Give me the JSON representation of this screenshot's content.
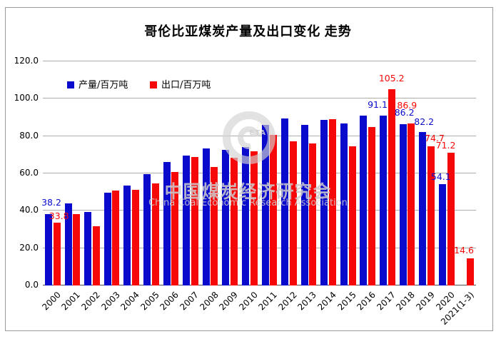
{
  "title": "哥伦比亚煤炭产量及出口变化 走势",
  "watermark": {
    "cn": "中国煤炭经济研究会",
    "en": "China Coal Economic Research Association",
    "logo_text": "ETA"
  },
  "chart_data": {
    "type": "bar",
    "title": "哥伦比亚煤炭产量及出口变化 走势",
    "categories": [
      "2000",
      "2001",
      "2002",
      "2003",
      "2004",
      "2005",
      "2006",
      "2007",
      "2008",
      "2009",
      "2010",
      "2011",
      "2012",
      "2013",
      "2014",
      "2015",
      "2016",
      "2017",
      "2018",
      "2019",
      "2020",
      "2021(1-3)"
    ],
    "series": [
      {
        "name": "产量/百万吨",
        "color": "#0a0acd",
        "values": [
          38.2,
          43.8,
          39.4,
          49.6,
          53.6,
          59.5,
          66.1,
          69.5,
          73.4,
          72.5,
          74.0,
          86.0,
          89.4,
          85.9,
          88.8,
          86.6,
          90.9,
          91.1,
          86.2,
          82.2,
          54.1,
          null
        ]
      },
      {
        "name": "出口/百万吨",
        "color": "#f70808",
        "values": [
          33.8,
          38.4,
          31.9,
          50.7,
          51.1,
          54.5,
          60.9,
          68.8,
          63.5,
          68.3,
          71.8,
          80.8,
          77.3,
          76.2,
          89.2,
          74.5,
          84.7,
          105.2,
          86.9,
          74.7,
          71.2,
          14.6
        ]
      }
    ],
    "ylim": [
      0,
      120
    ],
    "ytick_step": 20,
    "ytick_labels": [
      "0.0",
      "20.0",
      "40.0",
      "60.0",
      "80.0",
      "100.0",
      "120.0"
    ],
    "grid": true,
    "legend_position": "top-left-inside",
    "annotations": [
      {
        "series": 0,
        "index": 0,
        "text": "38.2",
        "dx": 4,
        "gap": 9
      },
      {
        "series": 1,
        "index": 0,
        "text": "33.8",
        "dx": 3,
        "gap": 2
      },
      {
        "series": 0,
        "index": 17,
        "text": "91.1",
        "dx": -8,
        "gap": 8
      },
      {
        "series": 1,
        "index": 17,
        "text": "105.2",
        "dx": 0,
        "gap": 8
      },
      {
        "series": 0,
        "index": 18,
        "text": "86.2",
        "dx": 2,
        "gap": 9
      },
      {
        "series": 1,
        "index": 18,
        "text": "86.9",
        "dx": -6,
        "gap": 18
      },
      {
        "series": 0,
        "index": 19,
        "text": "82.2",
        "dx": 2,
        "gap": 7
      },
      {
        "series": 1,
        "index": 19,
        "text": "74.7",
        "dx": 5,
        "gap": 4
      },
      {
        "series": 0,
        "index": 20,
        "text": "54.1",
        "dx": -2,
        "gap": 3
      },
      {
        "series": 1,
        "index": 20,
        "text": "71.2",
        "dx": -7,
        "gap": 3
      },
      {
        "series": 1,
        "index": 21,
        "text": "14.6",
        "dx": -9,
        "gap": 4
      }
    ]
  }
}
